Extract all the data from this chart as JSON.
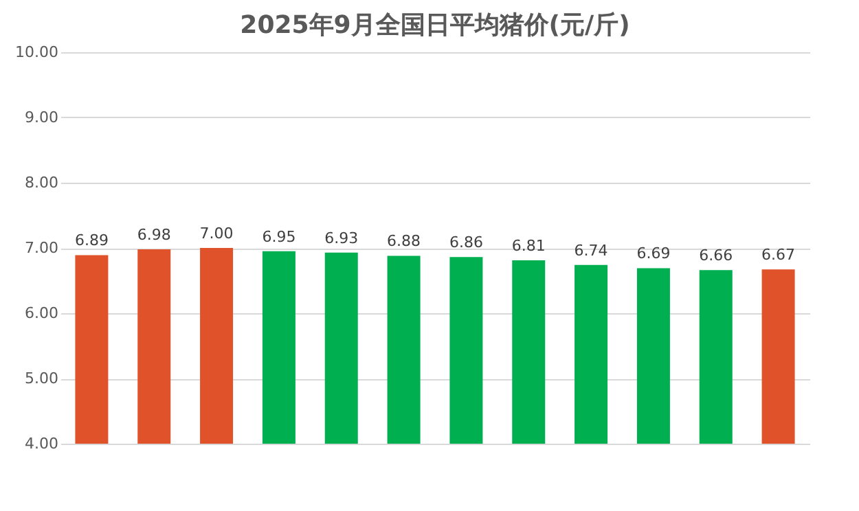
{
  "chart_data": {
    "type": "bar",
    "title": "2025年9月全国日平均猪价(元/斤)",
    "categories": [
      null,
      null,
      null,
      null,
      null,
      null,
      null,
      null,
      null,
      null,
      null,
      null
    ],
    "values": [
      6.89,
      6.98,
      7.0,
      6.95,
      6.93,
      6.88,
      6.86,
      6.81,
      6.74,
      6.69,
      6.66,
      6.67
    ],
    "colors": [
      "#e0522a",
      "#e0522a",
      "#e0522a",
      "#00b050",
      "#00b050",
      "#00b050",
      "#00b050",
      "#00b050",
      "#00b050",
      "#00b050",
      "#00b050",
      "#e0522a"
    ],
    "value_labels": [
      "6.89",
      "6.98",
      "7.00",
      "6.95",
      "6.93",
      "6.88",
      "6.86",
      "6.81",
      "6.74",
      "6.69",
      "6.66",
      "6.67"
    ],
    "ylim": [
      4,
      10
    ],
    "yticks": [
      {
        "value": 4,
        "label": "4.00"
      },
      {
        "value": 5,
        "label": "5.00"
      },
      {
        "value": 6,
        "label": "6.00"
      },
      {
        "value": 7,
        "label": "7.00"
      },
      {
        "value": 8,
        "label": "8.00"
      },
      {
        "value": 9,
        "label": "9.00"
      },
      {
        "value": 10,
        "label": "10.00"
      }
    ],
    "grid": "y",
    "tick_labels": "y"
  }
}
